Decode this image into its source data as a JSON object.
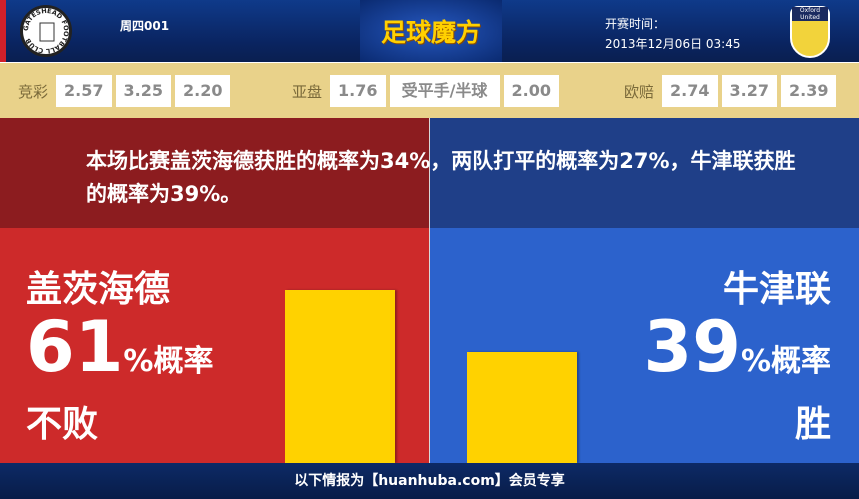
{
  "header": {
    "match_no": "周四001",
    "brand": "足球魔方",
    "kickoff_label": "开赛时间：",
    "kickoff_time": "2013年12月06日 03:45",
    "home_logo_text": "GATESHEAD FOOTBALL CLUB",
    "away_logo_text": "Oxford United"
  },
  "odds": [
    {
      "label": "竞彩",
      "values": [
        "2.57",
        "3.25",
        "2.20"
      ]
    },
    {
      "label": "亚盘",
      "values": [
        "1.76",
        "受平手/半球",
        "2.00"
      ]
    },
    {
      "label": "欧赔",
      "values": [
        "2.74",
        "3.27",
        "2.39"
      ]
    }
  ],
  "summary": "本场比赛盖茨海德获胜的概率为34%，两队打平的概率为27%，牛津联获胜的概率为39%。",
  "home": {
    "name": "盖茨海德",
    "percent": "61",
    "suffix": "%概率",
    "outcome": "不败",
    "value": 61,
    "color": "#cd2a2a"
  },
  "away": {
    "name": "牛津联",
    "percent": "39",
    "suffix": "%概率",
    "outcome": "胜",
    "value": 39,
    "color": "#2c62cc"
  },
  "bar_color": "#ffd200",
  "footer": "以下情报为【huanhuba.com】会员专享"
}
